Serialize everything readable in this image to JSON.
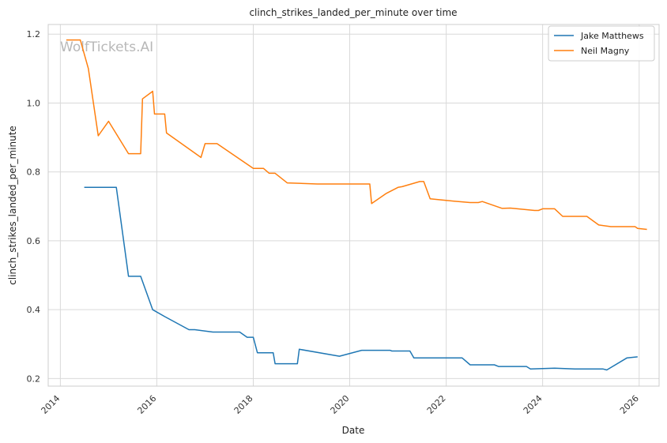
{
  "watermark": "WolfTickets.AI",
  "chart_data": {
    "type": "line",
    "title": "clinch_strikes_landed_per_minute over time",
    "xlabel": "Date",
    "ylabel": "clinch_strikes_landed_per_minute",
    "xlim": [
      "2013-10-01",
      "2026-06-01"
    ],
    "ylim": [
      0.178,
      1.228
    ],
    "x_ticks": [
      "2014",
      "2016",
      "2018",
      "2020",
      "2022",
      "2024",
      "2026"
    ],
    "y_ticks": [
      "0.2",
      "0.4",
      "0.6",
      "0.8",
      "1.0",
      "1.2"
    ],
    "grid": true,
    "legend_position": "top-right",
    "series": [
      {
        "name": "Jake Matthews",
        "color": "#1f77b4",
        "points": [
          [
            "2014-07-01",
            0.755
          ],
          [
            "2015-03-01",
            0.755
          ],
          [
            "2015-06-01",
            0.497
          ],
          [
            "2015-09-01",
            0.497
          ],
          [
            "2015-12-01",
            0.4
          ],
          [
            "2016-03-01",
            0.38
          ],
          [
            "2016-09-01",
            0.342
          ],
          [
            "2016-10-15",
            0.342
          ],
          [
            "2017-03-01",
            0.335
          ],
          [
            "2017-09-20",
            0.335
          ],
          [
            "2017-11-15",
            0.32
          ],
          [
            "2018-01-01",
            0.32
          ],
          [
            "2018-02-01",
            0.275
          ],
          [
            "2018-06-01",
            0.275
          ],
          [
            "2018-06-15",
            0.243
          ],
          [
            "2018-12-01",
            0.243
          ],
          [
            "2018-12-15",
            0.285
          ],
          [
            "2019-10-15",
            0.265
          ],
          [
            "2020-04-01",
            0.282
          ],
          [
            "2020-11-01",
            0.282
          ],
          [
            "2020-11-15",
            0.28
          ],
          [
            "2021-04-01",
            0.28
          ],
          [
            "2021-05-01",
            0.26
          ],
          [
            "2022-05-01",
            0.26
          ],
          [
            "2022-07-01",
            0.24
          ],
          [
            "2023-01-01",
            0.24
          ],
          [
            "2023-02-01",
            0.235
          ],
          [
            "2023-09-01",
            0.235
          ],
          [
            "2023-10-01",
            0.228
          ],
          [
            "2024-04-01",
            0.23
          ],
          [
            "2024-09-01",
            0.228
          ],
          [
            "2025-04-01",
            0.228
          ],
          [
            "2025-05-01",
            0.225
          ],
          [
            "2025-10-01",
            0.26
          ],
          [
            "2025-12-20",
            0.263
          ]
        ]
      },
      {
        "name": "Neil Magny",
        "color": "#ff7f0e",
        "points": [
          [
            "2014-02-15",
            1.183
          ],
          [
            "2014-06-01",
            1.183
          ],
          [
            "2014-08-01",
            1.1
          ],
          [
            "2014-10-15",
            0.905
          ],
          [
            "2015-01-01",
            0.947
          ],
          [
            "2015-06-01",
            0.853
          ],
          [
            "2015-09-01",
            0.853
          ],
          [
            "2015-09-15",
            1.012
          ],
          [
            "2015-12-01",
            1.034
          ],
          [
            "2015-12-15",
            0.968
          ],
          [
            "2016-03-01",
            0.968
          ],
          [
            "2016-03-15",
            0.913
          ],
          [
            "2016-12-01",
            0.842
          ],
          [
            "2017-01-01",
            0.882
          ],
          [
            "2017-04-01",
            0.882
          ],
          [
            "2018-01-01",
            0.81
          ],
          [
            "2018-03-20",
            0.81
          ],
          [
            "2018-05-01",
            0.796
          ],
          [
            "2018-06-15",
            0.796
          ],
          [
            "2018-09-15",
            0.768
          ],
          [
            "2019-05-01",
            0.765
          ],
          [
            "2020-06-01",
            0.765
          ],
          [
            "2020-06-15",
            0.708
          ],
          [
            "2020-10-01",
            0.737
          ],
          [
            "2021-01-01",
            0.755
          ],
          [
            "2021-02-01",
            0.757
          ],
          [
            "2021-06-15",
            0.772
          ],
          [
            "2021-07-15",
            0.772
          ],
          [
            "2021-09-01",
            0.722
          ],
          [
            "2022-03-01",
            0.715
          ],
          [
            "2022-07-01",
            0.711
          ],
          [
            "2022-09-01",
            0.711
          ],
          [
            "2022-10-01",
            0.714
          ],
          [
            "2023-03-01",
            0.694
          ],
          [
            "2023-05-01",
            0.695
          ],
          [
            "2023-11-01",
            0.688
          ],
          [
            "2023-12-01",
            0.688
          ],
          [
            "2024-01-01",
            0.693
          ],
          [
            "2024-04-01",
            0.693
          ],
          [
            "2024-06-01",
            0.671
          ],
          [
            "2024-12-01",
            0.671
          ],
          [
            "2025-03-01",
            0.646
          ],
          [
            "2025-06-01",
            0.641
          ],
          [
            "2025-12-01",
            0.641
          ],
          [
            "2025-12-20",
            0.636
          ],
          [
            "2026-03-01",
            0.633
          ]
        ]
      }
    ]
  }
}
